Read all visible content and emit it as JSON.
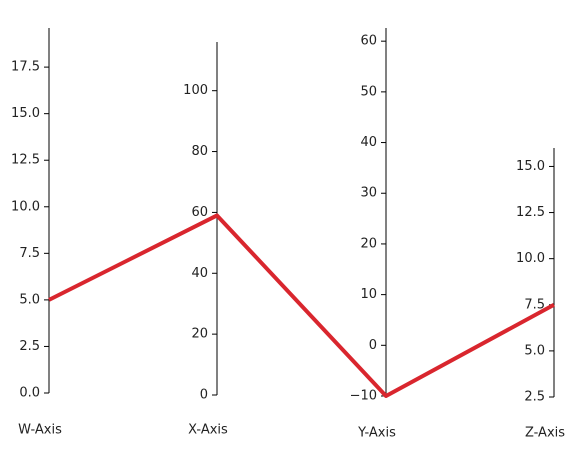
{
  "chart_data": {
    "type": "parallel",
    "axes": [
      {
        "name": "W-Axis",
        "ylim": [
          0,
          19.6
        ],
        "yticks": [
          {
            "value": 0,
            "label": "0.0"
          },
          2.5,
          {
            "value": 5,
            "label": "5.0"
          },
          7.5,
          {
            "value": 10,
            "label": "10.0"
          },
          12.5,
          {
            "value": 15,
            "label": "15.0"
          },
          17.5
        ]
      },
      {
        "name": "X-Axis",
        "ylim": [
          0,
          116
        ],
        "yticks": [
          0,
          20,
          40,
          60,
          80,
          100
        ]
      },
      {
        "name": "Y-Axis",
        "ylim": [
          -10,
          62.6
        ],
        "yticks": [
          {
            "value": -10,
            "label": "−10"
          },
          0,
          10,
          20,
          30,
          40,
          50,
          60
        ]
      },
      {
        "name": "Z-Axis",
        "ylim": [
          2.5,
          16
        ],
        "yticks": [
          2.5,
          {
            "value": 5,
            "label": "5.0"
          },
          7.5,
          {
            "value": 10,
            "label": "10.0"
          },
          12.5,
          {
            "value": 15,
            "label": "15.0"
          }
        ]
      }
    ],
    "series": [
      {
        "color": "#d9262e",
        "values": [
          5,
          59,
          -10,
          7.5
        ]
      }
    ]
  }
}
